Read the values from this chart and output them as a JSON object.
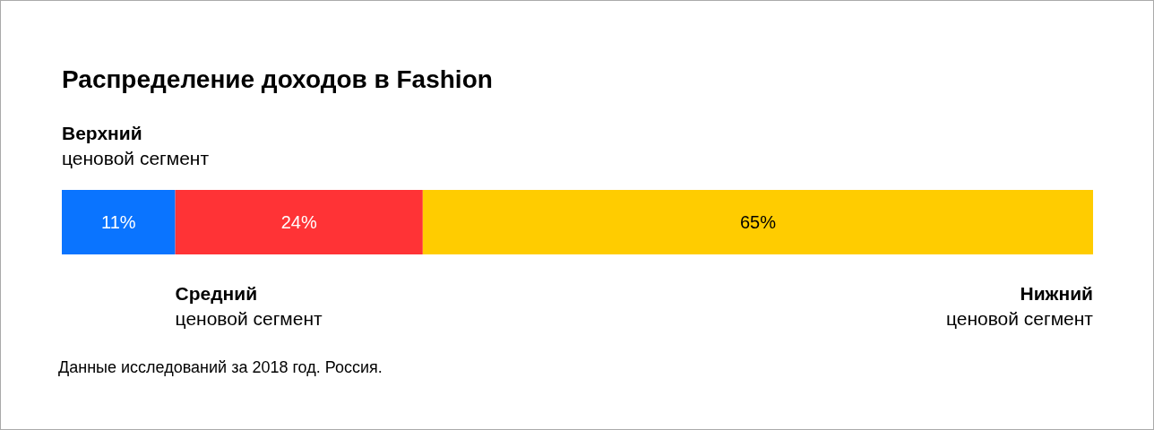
{
  "chart_data": {
    "type": "bar",
    "orientation": "horizontal",
    "stacked": true,
    "title": "Распределение доходов в Fashion",
    "categories": [
      null
    ],
    "series": [
      {
        "name": "Верхний ценовой сегмент",
        "color": "#0a74ff",
        "values": [
          11
        ],
        "value_labels": [
          "11%"
        ]
      },
      {
        "name": "Средний ценовой сегмент",
        "color": "#ff3336",
        "values": [
          24
        ],
        "value_labels": [
          "24%"
        ]
      },
      {
        "name": "Нижний ценовой сегмент",
        "color": "#ffcc00",
        "values": [
          65
        ],
        "value_labels": [
          "65%"
        ]
      }
    ],
    "annotations": [
      "Данные исследований за 2018 год. Россия."
    ],
    "legend": false
  }
}
